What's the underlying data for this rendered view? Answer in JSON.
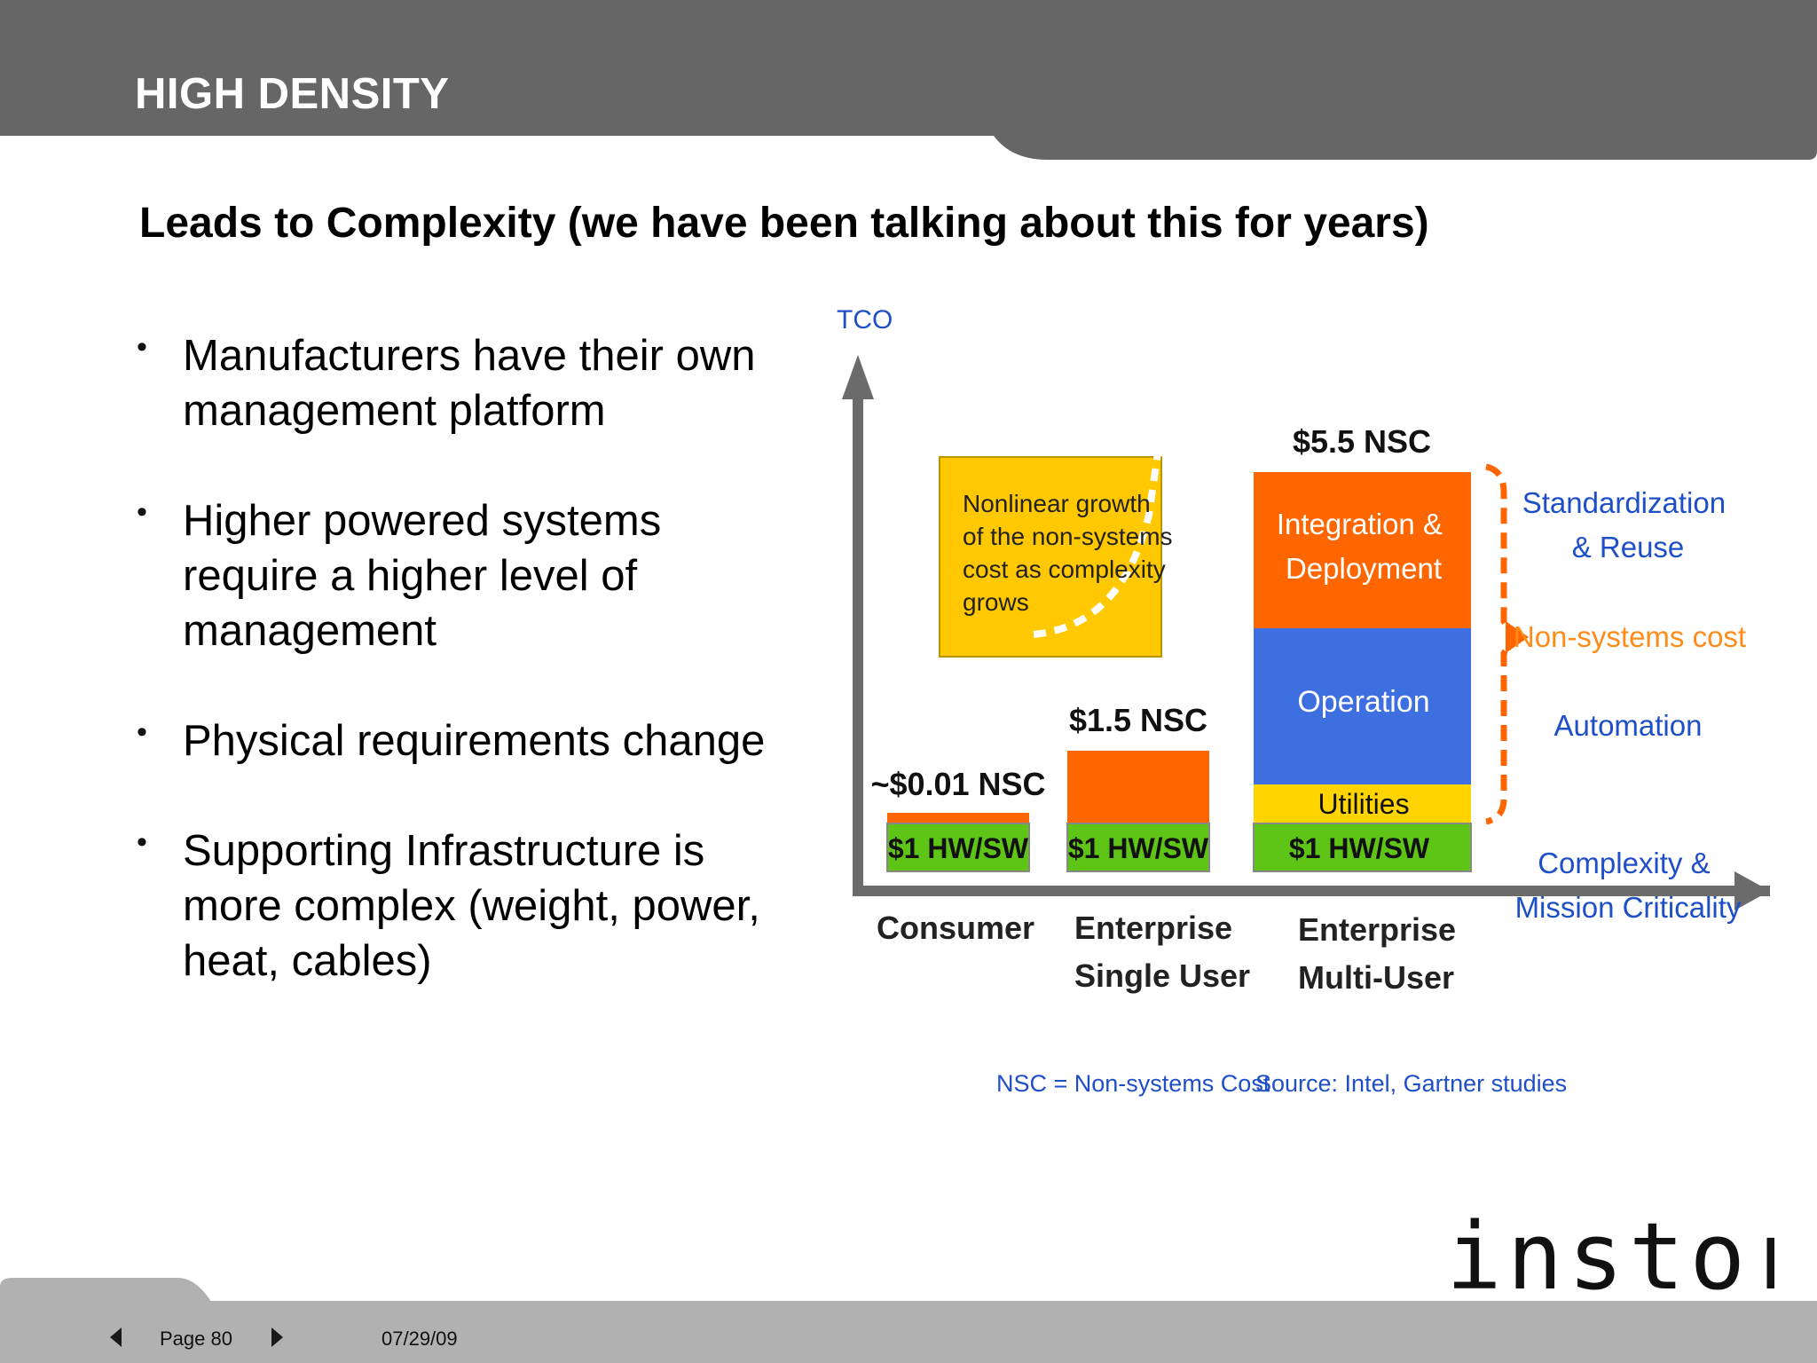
{
  "slide": {
    "title": "HIGH DENSITY",
    "subtitle": "Leads to Complexity (we have been talking about this for years)"
  },
  "bullets": [
    "Manufacturers have their own management platform",
    "Higher powered systems require a higher level of management",
    "Physical requirements change",
    "Supporting Infrastructure is more complex (weight, power, heat, cables)"
  ],
  "diagram": {
    "y_axis_label": "TCO",
    "callout_box": [
      "Nonlinear growth",
      "of the non-systems",
      "cost as complexity",
      "grows"
    ],
    "columns": [
      {
        "category": [
          "Consumer"
        ],
        "top_label": "~$0.01 NSC",
        "base": "$1 HW/SW"
      },
      {
        "category": [
          "Enterprise",
          "Single User"
        ],
        "top_label": "$1.5 NSC",
        "base": "$1 HW/SW"
      },
      {
        "category": [
          "Enterprise",
          "Multi-User"
        ],
        "top_label": "$5.5 NSC",
        "base": "$1 HW/SW",
        "segments": [
          "Utilities",
          "Operation",
          "Integration &|Deployment"
        ]
      }
    ],
    "right_labels": {
      "standardization": [
        "Standardization",
        "& Reuse"
      ],
      "nonsystems": "Non-systems cost",
      "automation": "Automation",
      "complexity": [
        "Complexity &",
        "Mission Criticality"
      ]
    },
    "footnote_nsc": "NSC = Non-systems Cost",
    "footnote_source": "Source: Intel, Gartner studies",
    "colors": {
      "orange": "#ff6600",
      "blue": "#3e6fe0",
      "yellow": "#ffd400",
      "green": "#5ec416",
      "axis": "#6b6b6b",
      "label_blue": "#1f4fc8"
    }
  },
  "footer": {
    "page": "Page 80",
    "date": "07/29/09",
    "prev_icon": "triangle-left-icon",
    "next_icon": "triangle-right-icon"
  },
  "logo": {
    "text": "instor"
  }
}
